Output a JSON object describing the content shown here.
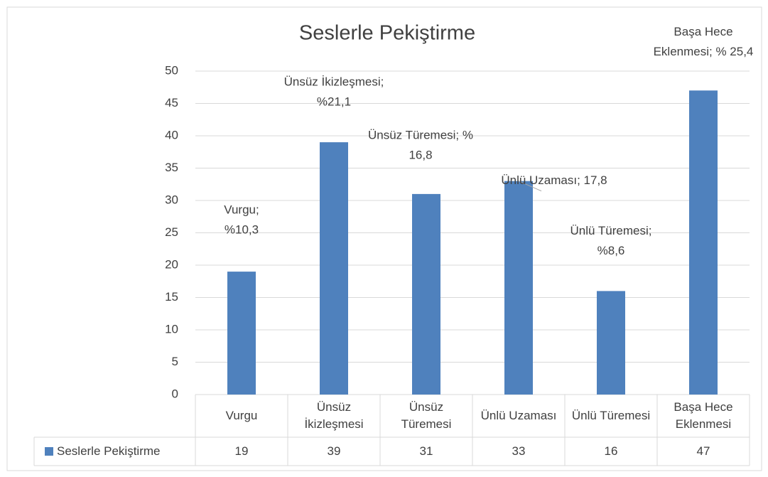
{
  "chart_data": {
    "type": "bar",
    "title": "Seslerle Pekiştirme",
    "categories": [
      "Vurgu",
      "Ünsüz İkizleşmesi",
      "Ünsüz Türemesi",
      "Ünlü Uzaması",
      "Ünlü Türemesi",
      "Başa Hece Eklenmesi"
    ],
    "series": [
      {
        "name": "Seslerle Pekiştirme",
        "color": "#4f81bd",
        "values": [
          19,
          39,
          31,
          33,
          16,
          47
        ]
      }
    ],
    "ylim": [
      0,
      50
    ],
    "yticks": [
      0,
      5,
      10,
      15,
      20,
      25,
      30,
      35,
      40,
      45,
      50
    ],
    "grid": true,
    "data_labels": [
      [
        "Vurgu;",
        "%10,3"
      ],
      [
        "Ünsüz İkizleşmesi;",
        "%21,1"
      ],
      [
        "Ünsüz Türemesi; %",
        "16,8"
      ],
      [
        "Ünlü Uzaması; 17,8"
      ],
      [
        "Ünlü Türemesi;",
        "%8,6"
      ],
      [
        "Başa Hece",
        "Eklenmesi; % 25,4"
      ]
    ]
  }
}
